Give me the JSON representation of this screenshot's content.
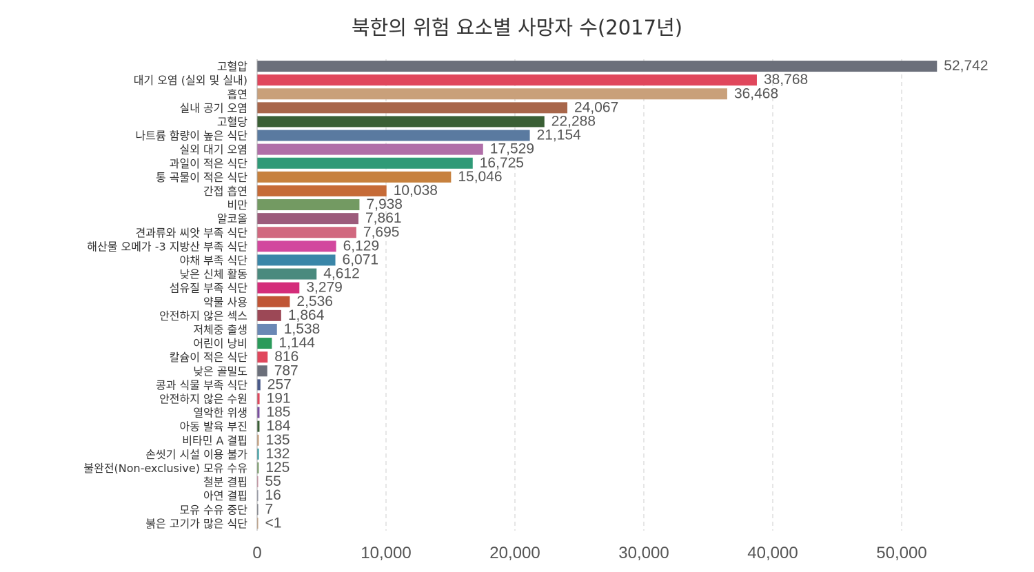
{
  "chart_data": {
    "type": "bar",
    "orientation": "horizontal",
    "title": "북한의 위험 요소별 사망자 수(2017년)",
    "xlim": [
      0,
      57000
    ],
    "x_ticks": [
      0,
      10000,
      20000,
      30000,
      40000,
      50000
    ],
    "x_tick_labels": [
      "0",
      "10,000",
      "20,000",
      "30,000",
      "40,000",
      "50,000"
    ],
    "grid": "x-dashed",
    "bars": [
      {
        "label": "고혈압",
        "value": 52742,
        "value_label": "52,742",
        "color": "#6b6f7a"
      },
      {
        "label": "대기 오염 (실외 및 실내)",
        "value": 38768,
        "value_label": "38,768",
        "color": "#e0475c"
      },
      {
        "label": "흡연",
        "value": 36468,
        "value_label": "36,468",
        "color": "#c9a07a"
      },
      {
        "label": "실내 공기 오염",
        "value": 24067,
        "value_label": "24,067",
        "color": "#a8664a"
      },
      {
        "label": "고혈당",
        "value": 22288,
        "value_label": "22,288",
        "color": "#3a5f35"
      },
      {
        "label": "나트륨 함량이 높은 식단",
        "value": 21154,
        "value_label": "21,154",
        "color": "#5a7aa0"
      },
      {
        "label": "실외 대기 오염",
        "value": 17529,
        "value_label": "17,529",
        "color": "#b06ea8"
      },
      {
        "label": "과일이 적은 식단",
        "value": 16725,
        "value_label": "16,725",
        "color": "#2f9a77"
      },
      {
        "label": "통 곡물이 적은 식단",
        "value": 15046,
        "value_label": "15,046",
        "color": "#c7813e"
      },
      {
        "label": "간접 흡연",
        "value": 10038,
        "value_label": "10,038",
        "color": "#c66b37"
      },
      {
        "label": "비만",
        "value": 7938,
        "value_label": "7,938",
        "color": "#739a62"
      },
      {
        "label": "알코올",
        "value": 7861,
        "value_label": "7,861",
        "color": "#9c5b7b"
      },
      {
        "label": "견과류와 씨앗 부족 식단",
        "value": 7695,
        "value_label": "7,695",
        "color": "#d1687f"
      },
      {
        "label": "해산물 오메가 -3 지방산 부족 식단",
        "value": 6129,
        "value_label": "6,129",
        "color": "#d2489e"
      },
      {
        "label": "야채 부족 식단",
        "value": 6071,
        "value_label": "6,071",
        "color": "#3a86a8"
      },
      {
        "label": "낮은 신체 활동",
        "value": 4612,
        "value_label": "4,612",
        "color": "#4a8a7e"
      },
      {
        "label": "섬유질 부족 식단",
        "value": 3279,
        "value_label": "3,279",
        "color": "#d42d7a"
      },
      {
        "label": "약물 사용",
        "value": 2536,
        "value_label": "2,536",
        "color": "#c05535"
      },
      {
        "label": "안전하지 않은 섹스",
        "value": 1864,
        "value_label": "1,864",
        "color": "#9c4856"
      },
      {
        "label": "저체중 출생",
        "value": 1538,
        "value_label": "1,538",
        "color": "#6a88b5"
      },
      {
        "label": "어린이 낭비",
        "value": 1144,
        "value_label": "1,144",
        "color": "#2a9a5a"
      },
      {
        "label": "칼슘이 적은 식단",
        "value": 816,
        "value_label": "816",
        "color": "#e0475c"
      },
      {
        "label": "낮은 골밀도",
        "value": 787,
        "value_label": "787",
        "color": "#6b6f7a"
      },
      {
        "label": "콩과 식물 부족 식단",
        "value": 257,
        "value_label": "257",
        "color": "#4a5a8a"
      },
      {
        "label": "안전하지 않은 수원",
        "value": 191,
        "value_label": "191",
        "color": "#e0475c"
      },
      {
        "label": "열악한 위생",
        "value": 185,
        "value_label": "185",
        "color": "#7a4fa0"
      },
      {
        "label": "아동 발육 부진",
        "value": 184,
        "value_label": "184",
        "color": "#3a5f35"
      },
      {
        "label": "비타민 A 결핍",
        "value": 135,
        "value_label": "135",
        "color": "#c9a07a"
      },
      {
        "label": "손씻기 시설 이용 불가",
        "value": 132,
        "value_label": "132",
        "color": "#2a9aa0"
      },
      {
        "label": "불완전(Non-exclusive) 모유 수유",
        "value": 125,
        "value_label": "125",
        "color": "#739a62"
      },
      {
        "label": "철분 결핍",
        "value": 55,
        "value_label": "55",
        "color": "#d1889f"
      },
      {
        "label": "아연 결핍",
        "value": 16,
        "value_label": "16",
        "color": "#8a8fa0"
      },
      {
        "label": "모유 수유 중단",
        "value": 7,
        "value_label": "7",
        "color": "#6b6f7a"
      },
      {
        "label": "붉은 고기가 많은 식단",
        "value": 0.5,
        "value_label": "<1",
        "color": "#c9a07a"
      }
    ]
  }
}
